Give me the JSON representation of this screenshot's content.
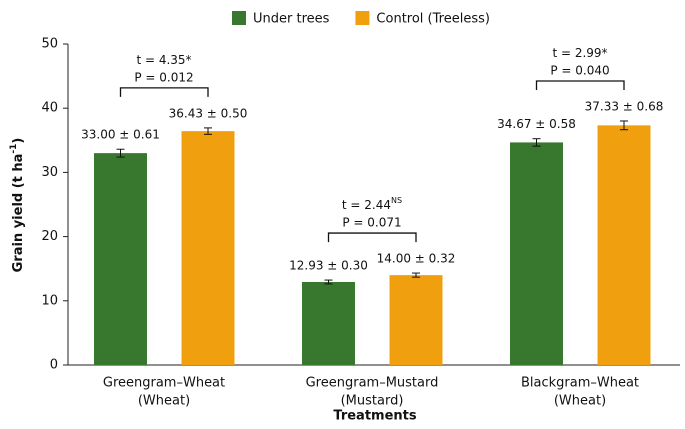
{
  "chart_data": {
    "type": "bar",
    "legend": "top",
    "ylabel": {
      "text": "Grain yield (t ha",
      "sup": "-1",
      "tail": ")"
    },
    "xlabel": "Treatments",
    "categories": [
      [
        "Greengram–Wheat",
        "(Wheat)"
      ],
      [
        "Greengram–Mustard",
        "(Mustard)"
      ],
      [
        "Blackgram–Wheat",
        "(Wheat)"
      ]
    ],
    "series": [
      {
        "name": "Under trees",
        "color": "#37772e",
        "values": [
          33.0,
          12.93,
          34.67
        ],
        "errors": [
          0.61,
          0.3,
          0.58
        ],
        "value_labels": [
          "33.00 ± 0.61",
          "12.93 ± 0.30",
          "34.67 ± 0.58"
        ]
      },
      {
        "name": "Control (Treeless)",
        "color": "#f0a00f",
        "values": [
          36.43,
          14.0,
          37.33
        ],
        "errors": [
          0.5,
          0.32,
          0.68
        ],
        "value_labels": [
          "36.43 ± 0.50",
          "14.00 ± 0.32",
          "37.33 ± 0.68"
        ]
      }
    ],
    "annotations": [
      {
        "t": "t = 4.35*",
        "p": "P = 0.012"
      },
      {
        "t": "t = 2.44",
        "t_sup": "NS",
        "p": "P = 0.071"
      },
      {
        "t": "t = 2.99*",
        "p": "P = 0.040"
      }
    ],
    "ylim": [
      0,
      50
    ],
    "yticks": [
      0,
      10,
      20,
      30,
      40,
      50
    ],
    "grid": false
  }
}
